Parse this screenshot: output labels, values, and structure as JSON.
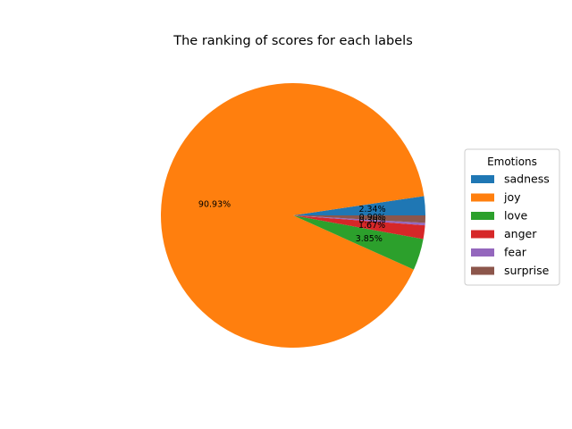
{
  "chart_data": {
    "type": "pie",
    "title": "The ranking of scores for each labels",
    "labels": [
      "sadness",
      "joy",
      "love",
      "anger",
      "fear",
      "surprise"
    ],
    "values": [
      2.34,
      90.93,
      3.85,
      1.67,
      0.3,
      0.9
    ],
    "value_labels": [
      "2.34%",
      "90.93%",
      "3.85%",
      "1.67%",
      "0.30%",
      "0.90%"
    ],
    "colors": [
      "#1f77b4",
      "#ff7f0e",
      "#2ca02c",
      "#d62728",
      "#9467bd",
      "#8c564b"
    ],
    "start_angle_deg": 0,
    "direction": "counterclockwise",
    "legend": {
      "title": "Emotions",
      "placement": "right"
    }
  }
}
